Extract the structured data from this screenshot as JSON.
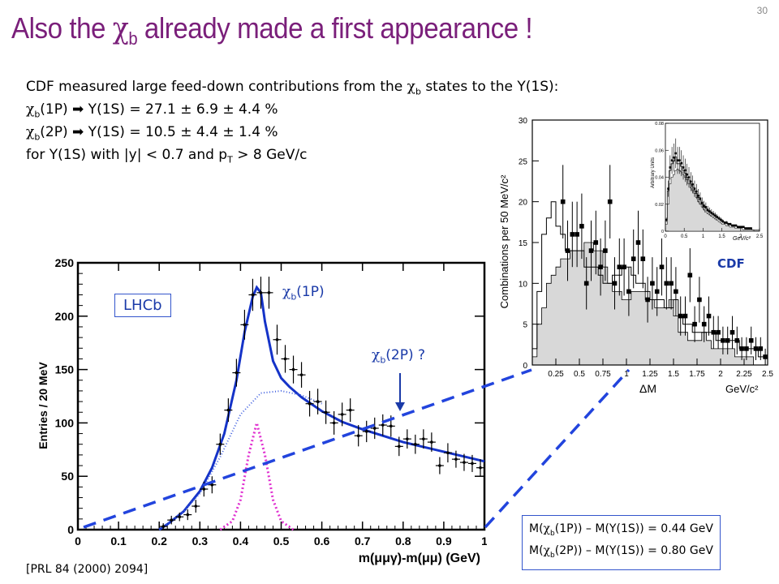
{
  "slide": {
    "title_prefix": "Also the ",
    "title_symbol": "χ",
    "title_sub": "b",
    "title_suffix": " already made a first appearance !",
    "page_number": "30"
  },
  "body": {
    "line1_prefix": "CDF measured large feed-down contributions from the ",
    "line1_symbol": "χ",
    "line1_sub": "b",
    "line1_suffix": " states to the Y(1S):",
    "line2_symbol": "χ",
    "line2_sub": "b",
    "line2_text": "(1P) ➡ Y(1S) = 27.1 ± 6.9 ± 4.4 %",
    "line3_symbol": "χ",
    "line3_sub": "b",
    "line3_text": "(2P) ➡ Y(1S) = 10.5 ± 4.4 ± 1.4 %",
    "line4_prefix": "for Y(1S) with |y| < 0.7 and p",
    "line4_sub": "T",
    "line4_suffix": " > 8 GeV/c"
  },
  "labels": {
    "lhcb": "LHCb",
    "cdf": "CDF",
    "chib1p_symbol": "χ",
    "chib1p_sub": "b",
    "chib1p_text": "(1P)",
    "chib2p_symbol": "χ",
    "chib2p_sub": "b",
    "chib2p_text": "(2P) ?"
  },
  "mass_box": {
    "row1_prefix": "M(",
    "row1_symbol": "χ",
    "row1_sub": "b",
    "row1_suffix": "(1P)) – M(Y(1S)) = 0.44 GeV",
    "row2_prefix": "M(",
    "row2_symbol": "χ",
    "row2_sub": "b",
    "row2_suffix": "(2P)) – M(Y(1S)) = 0.80 GeV"
  },
  "reference": "[PRL 84 (2000) 2094]",
  "colors": {
    "title": "#7a1f7a",
    "fit_line": "#1533c8",
    "signal_line": "#e030d0",
    "background_line": "#4060e0",
    "dashed_lines": "#2244dd",
    "cdf_fill": "#d8d8d8"
  },
  "chart_data": [
    {
      "type": "scatter",
      "title": "",
      "xlabel": "m(μμγ)-m(μμ) (GeV)",
      "ylabel": "Entries / 20 MeV",
      "xlim": [
        0,
        1
      ],
      "ylim": [
        0,
        250
      ],
      "xticks": [
        "0",
        "0.1",
        "0.2",
        "0.3",
        "0.4",
        "0.5",
        "0.6",
        "0.7",
        "0.8",
        "0.9",
        "1"
      ],
      "yticks": [
        "0",
        "50",
        "100",
        "150",
        "200",
        "250"
      ],
      "points": [
        {
          "x": 0.21,
          "y": 3,
          "err": 3
        },
        {
          "x": 0.23,
          "y": 9,
          "err": 4
        },
        {
          "x": 0.25,
          "y": 12,
          "err": 4
        },
        {
          "x": 0.27,
          "y": 14,
          "err": 5
        },
        {
          "x": 0.29,
          "y": 22,
          "err": 6
        },
        {
          "x": 0.31,
          "y": 38,
          "err": 7
        },
        {
          "x": 0.33,
          "y": 42,
          "err": 8
        },
        {
          "x": 0.35,
          "y": 80,
          "err": 10
        },
        {
          "x": 0.37,
          "y": 112,
          "err": 11
        },
        {
          "x": 0.39,
          "y": 147,
          "err": 13
        },
        {
          "x": 0.41,
          "y": 192,
          "err": 14
        },
        {
          "x": 0.43,
          "y": 220,
          "err": 15
        },
        {
          "x": 0.45,
          "y": 222,
          "err": 15
        },
        {
          "x": 0.47,
          "y": 222,
          "err": 15
        },
        {
          "x": 0.49,
          "y": 178,
          "err": 14
        },
        {
          "x": 0.51,
          "y": 160,
          "err": 13
        },
        {
          "x": 0.53,
          "y": 150,
          "err": 13
        },
        {
          "x": 0.55,
          "y": 145,
          "err": 12
        },
        {
          "x": 0.57,
          "y": 118,
          "err": 12
        },
        {
          "x": 0.59,
          "y": 120,
          "err": 12
        },
        {
          "x": 0.61,
          "y": 110,
          "err": 11
        },
        {
          "x": 0.63,
          "y": 100,
          "err": 11
        },
        {
          "x": 0.65,
          "y": 108,
          "err": 11
        },
        {
          "x": 0.67,
          "y": 112,
          "err": 11
        },
        {
          "x": 0.69,
          "y": 88,
          "err": 10
        },
        {
          "x": 0.71,
          "y": 92,
          "err": 10
        },
        {
          "x": 0.73,
          "y": 95,
          "err": 10
        },
        {
          "x": 0.75,
          "y": 98,
          "err": 10
        },
        {
          "x": 0.77,
          "y": 97,
          "err": 10
        },
        {
          "x": 0.79,
          "y": 78,
          "err": 9
        },
        {
          "x": 0.81,
          "y": 85,
          "err": 9
        },
        {
          "x": 0.83,
          "y": 80,
          "err": 9
        },
        {
          "x": 0.85,
          "y": 85,
          "err": 9
        },
        {
          "x": 0.87,
          "y": 82,
          "err": 9
        },
        {
          "x": 0.89,
          "y": 60,
          "err": 8
        },
        {
          "x": 0.91,
          "y": 72,
          "err": 9
        },
        {
          "x": 0.93,
          "y": 66,
          "err": 8
        },
        {
          "x": 0.95,
          "y": 63,
          "err": 8
        },
        {
          "x": 0.97,
          "y": 62,
          "err": 8
        },
        {
          "x": 0.99,
          "y": 58,
          "err": 8
        }
      ],
      "series": [
        {
          "curve": "total_fit",
          "x": [
            0.2,
            0.22,
            0.26,
            0.3,
            0.33,
            0.36,
            0.39,
            0.41,
            0.43,
            0.44,
            0.45,
            0.46,
            0.48,
            0.5,
            0.52,
            0.55,
            0.6,
            0.65,
            0.7,
            0.8,
            0.9,
            1.0
          ],
          "y": [
            0,
            5,
            17,
            36,
            58,
            90,
            140,
            185,
            218,
            227,
            222,
            195,
            158,
            142,
            134,
            124,
            111,
            101,
            94,
            82,
            73,
            64
          ]
        },
        {
          "curve": "background",
          "x": [
            0.2,
            0.26,
            0.3,
            0.35,
            0.4,
            0.45,
            0.5,
            0.55,
            0.6
          ],
          "y": [
            0,
            17,
            34,
            68,
            108,
            128,
            130,
            126,
            118
          ]
        },
        {
          "curve": "signal",
          "x": [
            0.35,
            0.38,
            0.4,
            0.42,
            0.44,
            0.46,
            0.48,
            0.5,
            0.53
          ],
          "y": [
            0,
            8,
            28,
            70,
            100,
            70,
            28,
            8,
            0
          ]
        }
      ]
    },
    {
      "type": "bar",
      "title": "",
      "xlabel": "ΔM",
      "xunit": "GeV/c²",
      "ylabel": "Combinations per 50 MeV/c²",
      "xlim": [
        0,
        2.5
      ],
      "ylim": [
        0,
        30
      ],
      "xticks": [
        "0",
        "0.25",
        "0.5",
        "0.75",
        "1",
        "1.25",
        "1.5",
        "1.75",
        "2",
        "2.25",
        "2.5"
      ],
      "yticks": [
        "0",
        "5",
        "10",
        "15",
        "20",
        "25",
        "30"
      ],
      "bin_width": 0.05,
      "filled_histogram": [
        1,
        5,
        7,
        10,
        11,
        12,
        13,
        13,
        14,
        14,
        14,
        15,
        15,
        14,
        14,
        12,
        10,
        9,
        9,
        8,
        8,
        9,
        9,
        9,
        8,
        8,
        7,
        7,
        7,
        8,
        6,
        4,
        4,
        3,
        3,
        3,
        4,
        3,
        2,
        2,
        2,
        2,
        2,
        1,
        1,
        1,
        1,
        0,
        0,
        0
      ],
      "outline_histogram": [
        2,
        9,
        16,
        18,
        20,
        17,
        16,
        14,
        14,
        14,
        14,
        12,
        12,
        12,
        11,
        10,
        10,
        11,
        11,
        12,
        12,
        11,
        10,
        10,
        9,
        8,
        8,
        8,
        7,
        7,
        8,
        6,
        5,
        5,
        4,
        4,
        4,
        4,
        4,
        3,
        3,
        3,
        3,
        3,
        2,
        2,
        2,
        2,
        1,
        1
      ],
      "points": [
        {
          "x": 0.325,
          "y": 20,
          "err": 4.5
        },
        {
          "x": 0.375,
          "y": 14,
          "err": 3.7
        },
        {
          "x": 0.425,
          "y": 16,
          "err": 4
        },
        {
          "x": 0.475,
          "y": 16,
          "err": 4
        },
        {
          "x": 0.525,
          "y": 17,
          "err": 4
        },
        {
          "x": 0.575,
          "y": 10,
          "err": 3.2
        },
        {
          "x": 0.625,
          "y": 14,
          "err": 3.7
        },
        {
          "x": 0.675,
          "y": 15,
          "err": 3.9
        },
        {
          "x": 0.725,
          "y": 12,
          "err": 3.5
        },
        {
          "x": 0.775,
          "y": 14,
          "err": 3.7
        },
        {
          "x": 0.825,
          "y": 20,
          "err": 4.5
        },
        {
          "x": 0.875,
          "y": 10,
          "err": 3.2
        },
        {
          "x": 0.925,
          "y": 12,
          "err": 3.5
        },
        {
          "x": 0.975,
          "y": 12,
          "err": 3.5
        },
        {
          "x": 1.025,
          "y": 9,
          "err": 3
        },
        {
          "x": 1.075,
          "y": 13,
          "err": 3.6
        },
        {
          "x": 1.125,
          "y": 15,
          "err": 3.9
        },
        {
          "x": 1.175,
          "y": 13,
          "err": 3.6
        },
        {
          "x": 1.225,
          "y": 8,
          "err": 2.8
        },
        {
          "x": 1.275,
          "y": 10,
          "err": 3.2
        },
        {
          "x": 1.325,
          "y": 9,
          "err": 3
        },
        {
          "x": 1.375,
          "y": 12,
          "err": 3.5
        },
        {
          "x": 1.425,
          "y": 10,
          "err": 3.2
        },
        {
          "x": 1.475,
          "y": 10,
          "err": 3.2
        },
        {
          "x": 1.525,
          "y": 9,
          "err": 3
        },
        {
          "x": 1.575,
          "y": 6,
          "err": 2.4
        },
        {
          "x": 1.625,
          "y": 6,
          "err": 2.4
        },
        {
          "x": 1.675,
          "y": 11,
          "err": 3.3
        },
        {
          "x": 1.725,
          "y": 5,
          "err": 2.2
        },
        {
          "x": 1.775,
          "y": 8,
          "err": 2.8
        },
        {
          "x": 1.825,
          "y": 5,
          "err": 2.2
        },
        {
          "x": 1.875,
          "y": 6,
          "err": 2.4
        },
        {
          "x": 1.925,
          "y": 4,
          "err": 2
        },
        {
          "x": 1.975,
          "y": 4,
          "err": 2
        },
        {
          "x": 2.025,
          "y": 3,
          "err": 1.7
        },
        {
          "x": 2.075,
          "y": 3,
          "err": 1.7
        },
        {
          "x": 2.125,
          "y": 4,
          "err": 2
        },
        {
          "x": 2.175,
          "y": 3,
          "err": 1.7
        },
        {
          "x": 2.225,
          "y": 2,
          "err": 1.4
        },
        {
          "x": 2.275,
          "y": 2,
          "err": 1.4
        },
        {
          "x": 2.325,
          "y": 3,
          "err": 1.7
        },
        {
          "x": 2.375,
          "y": 2,
          "err": 1.4
        },
        {
          "x": 2.425,
          "y": 2,
          "err": 1.4
        },
        {
          "x": 2.475,
          "y": 1,
          "err": 1
        }
      ],
      "inset": {
        "ylabel": "Arbitrary Units",
        "xlabel": "GeV/c²",
        "xlim": [
          0,
          2.5
        ],
        "ylim": [
          0,
          0.08
        ],
        "xticks": [
          "0",
          "0.5",
          "1",
          "1.5",
          "2",
          "2.5"
        ],
        "yticks": [
          "0",
          "0.02",
          "0.04",
          "0.06",
          "0.08"
        ],
        "filled_histogram": [
          0.005,
          0.02,
          0.035,
          0.04,
          0.042,
          0.045,
          0.046,
          0.045,
          0.044,
          0.042,
          0.04,
          0.038,
          0.035,
          0.032,
          0.03,
          0.028,
          0.025,
          0.022,
          0.02,
          0.018,
          0.016,
          0.014,
          0.013,
          0.012,
          0.011,
          0.01,
          0.009,
          0.008,
          0.007,
          0.006,
          0.005,
          0.005,
          0.004,
          0.004,
          0.003,
          0.003,
          0.003,
          0.002,
          0.002,
          0.002,
          0.002,
          0.001,
          0.001,
          0.001,
          0.001,
          0.001,
          0.001,
          0,
          0,
          0
        ],
        "outline_histogram": [
          0.008,
          0.03,
          0.045,
          0.05,
          0.052,
          0.055,
          0.05,
          0.05,
          0.048,
          0.045,
          0.043,
          0.04,
          0.038,
          0.035,
          0.033,
          0.03,
          0.028,
          0.025,
          0.023,
          0.02,
          0.018,
          0.017,
          0.015,
          0.014,
          0.013,
          0.012,
          0.011,
          0.01,
          0.009,
          0.008,
          0.007,
          0.006,
          0.006,
          0.005,
          0.005,
          0.004,
          0.004,
          0.004,
          0.003,
          0.003,
          0.003,
          0.003,
          0.002,
          0.002,
          0.002,
          0.002,
          0.001,
          0.001,
          0.001,
          0.001
        ]
      }
    }
  ]
}
